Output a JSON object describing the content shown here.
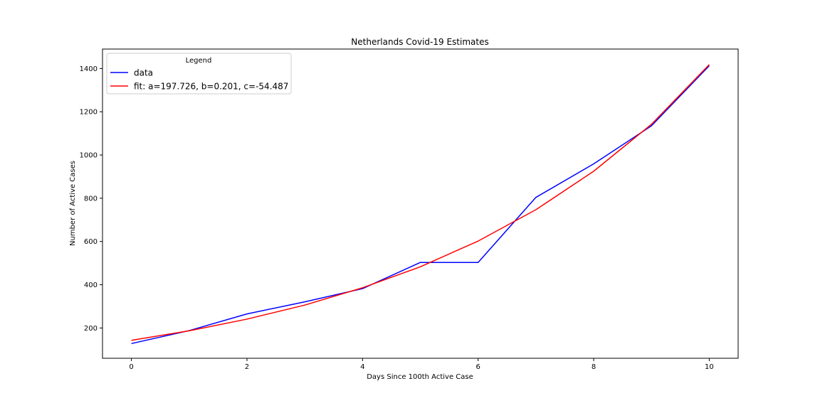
{
  "chart_data": {
    "type": "line",
    "title": "Netherlands Covid-19 Estimates",
    "xlabel": "Days Since 100th Active Case",
    "ylabel": "Number of Active Cases",
    "xlim": [
      -0.5,
      10.5
    ],
    "ylim": [
      60,
      1490
    ],
    "x_ticks": [
      0,
      2,
      4,
      6,
      8,
      10
    ],
    "y_ticks": [
      200,
      400,
      600,
      800,
      1000,
      1200,
      1400
    ],
    "grid": false,
    "legend": {
      "title": "Legend",
      "placement": "upper-left"
    },
    "x": [
      0,
      1,
      2,
      3,
      4,
      5,
      6,
      7,
      8,
      9,
      10
    ],
    "series": [
      {
        "name": "data",
        "color": "#0000ff",
        "values": [
          128,
          188,
          265,
          321,
          382,
          503,
          503,
          804,
          959,
          1135,
          1413
        ]
      },
      {
        "name": "fit: a=197.726, b=0.201, c=-54.487",
        "color": "#ff0000",
        "values": [
          143,
          187,
          241,
          306,
          386,
          483,
          602,
          747,
          925,
          1142,
          1418
        ]
      }
    ]
  }
}
